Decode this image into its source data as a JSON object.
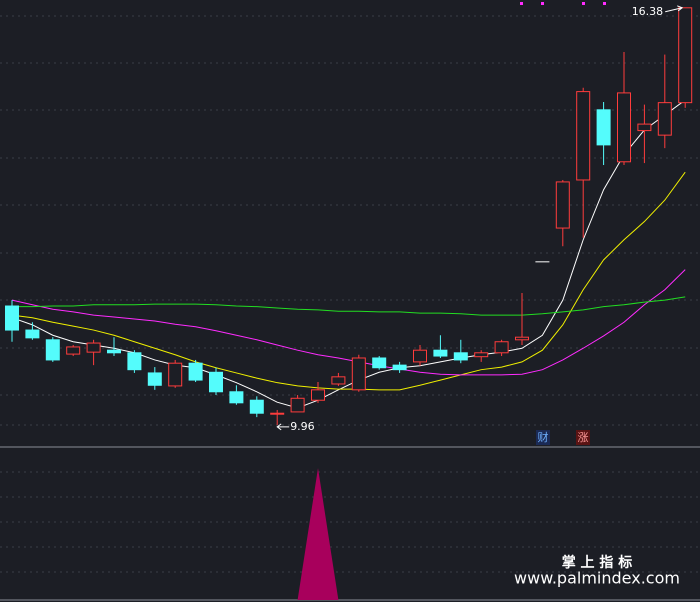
{
  "chart_data": {
    "type": "candlestick",
    "open": [
      11.79,
      11.42,
      11.27,
      11.05,
      11.08,
      11.11,
      11.07,
      10.76,
      10.56,
      10.91,
      10.77,
      10.47,
      10.34,
      10.13,
      10.16,
      10.34,
      10.59,
      10.5,
      10.99,
      10.88,
      10.93,
      11.11,
      11.07,
      11.01,
      11.07,
      11.27,
      12.47,
      12.99,
      13.73,
      14.81,
      14.01,
      14.49,
      14.42,
      14.92
    ],
    "high": [
      11.88,
      11.54,
      11.31,
      11.19,
      11.27,
      11.31,
      11.11,
      10.85,
      10.96,
      10.96,
      10.84,
      10.57,
      10.4,
      10.19,
      10.42,
      10.62,
      10.76,
      11.04,
      11.02,
      10.93,
      11.19,
      11.34,
      11.27,
      11.11,
      11.27,
      11.99,
      12.47,
      13.73,
      15.15,
      14.93,
      15.7,
      14.89,
      15.66,
      16.38
    ],
    "low": [
      11.24,
      11.27,
      10.93,
      11.02,
      10.88,
      11.02,
      10.76,
      10.5,
      10.53,
      10.62,
      10.42,
      10.27,
      10.08,
      9.96,
      10.16,
      10.3,
      10.56,
      10.47,
      10.81,
      10.76,
      10.87,
      10.99,
      10.91,
      10.93,
      11.02,
      11.19,
      12.47,
      12.71,
      12.84,
      13.96,
      13.96,
      13.99,
      14.22,
      14.84
    ],
    "close": [
      11.42,
      11.3,
      10.96,
      11.16,
      11.22,
      11.07,
      10.81,
      10.57,
      10.91,
      10.65,
      10.47,
      10.3,
      10.14,
      10.14,
      10.37,
      10.5,
      10.7,
      10.99,
      10.84,
      10.81,
      11.11,
      11.02,
      10.96,
      11.07,
      11.24,
      11.31,
      12.47,
      13.7,
      15.09,
      14.27,
      15.07,
      14.59,
      14.92,
      16.38
    ],
    "ylim": [
      9.62,
      16.5
    ],
    "up_color": "#ff3c3c",
    "down_color": "#54fcfc",
    "flat_color": "#ffffff",
    "moving_averages": [
      {
        "color": "#ffffff",
        "values": [
          11.61,
          11.5,
          11.34,
          11.24,
          11.19,
          11.14,
          11.07,
          10.96,
          10.88,
          10.84,
          10.73,
          10.61,
          10.47,
          10.31,
          10.22,
          10.34,
          10.5,
          10.65,
          10.77,
          10.84,
          10.87,
          10.93,
          10.99,
          11.04,
          11.08,
          11.14,
          11.34,
          11.88,
          12.81,
          13.58,
          14.12,
          14.5,
          14.73,
          14.96
        ]
      },
      {
        "color": "#f0f000",
        "values": [
          11.65,
          11.61,
          11.54,
          11.48,
          11.42,
          11.34,
          11.24,
          11.14,
          11.04,
          10.93,
          10.84,
          10.76,
          10.68,
          10.61,
          10.56,
          10.53,
          10.51,
          10.51,
          10.5,
          10.5,
          10.57,
          10.65,
          10.73,
          10.81,
          10.85,
          10.93,
          11.11,
          11.5,
          12.04,
          12.5,
          12.81,
          13.09,
          13.42,
          13.85
        ]
      },
      {
        "color": "#ff2cff",
        "values": [
          11.88,
          11.81,
          11.74,
          11.7,
          11.65,
          11.62,
          11.59,
          11.56,
          11.51,
          11.47,
          11.41,
          11.34,
          11.27,
          11.19,
          11.11,
          11.04,
          10.99,
          10.93,
          10.87,
          10.82,
          10.77,
          10.74,
          10.73,
          10.73,
          10.73,
          10.74,
          10.81,
          10.96,
          11.14,
          11.33,
          11.54,
          11.81,
          12.04,
          12.35
        ]
      },
      {
        "color": "#22dd22",
        "values": [
          11.78,
          11.78,
          11.79,
          11.79,
          11.81,
          11.81,
          11.81,
          11.82,
          11.82,
          11.82,
          11.81,
          11.79,
          11.78,
          11.76,
          11.74,
          11.73,
          11.71,
          11.71,
          11.7,
          11.7,
          11.68,
          11.68,
          11.67,
          11.65,
          11.65,
          11.65,
          11.67,
          11.7,
          11.73,
          11.78,
          11.81,
          11.85,
          11.88,
          11.93
        ]
      }
    ],
    "annotations": [
      {
        "value": 16.38,
        "label": "16.38"
      },
      {
        "value": 9.96,
        "label": "9.96"
      }
    ],
    "badges": [
      "财",
      "涨"
    ],
    "signal": {
      "color": "#a8005c",
      "ylim": [
        0,
        1.16
      ],
      "values": [
        0,
        0,
        0,
        0,
        0,
        0,
        0,
        0,
        0,
        0,
        0,
        0,
        0,
        0,
        0,
        1,
        0,
        0,
        0,
        0,
        0,
        0,
        0,
        0,
        0,
        0,
        0,
        0,
        0,
        0,
        0,
        0,
        0,
        0
      ]
    }
  },
  "watermark": {
    "title": "掌 上 指 标",
    "url": "www.palmindex.com"
  }
}
